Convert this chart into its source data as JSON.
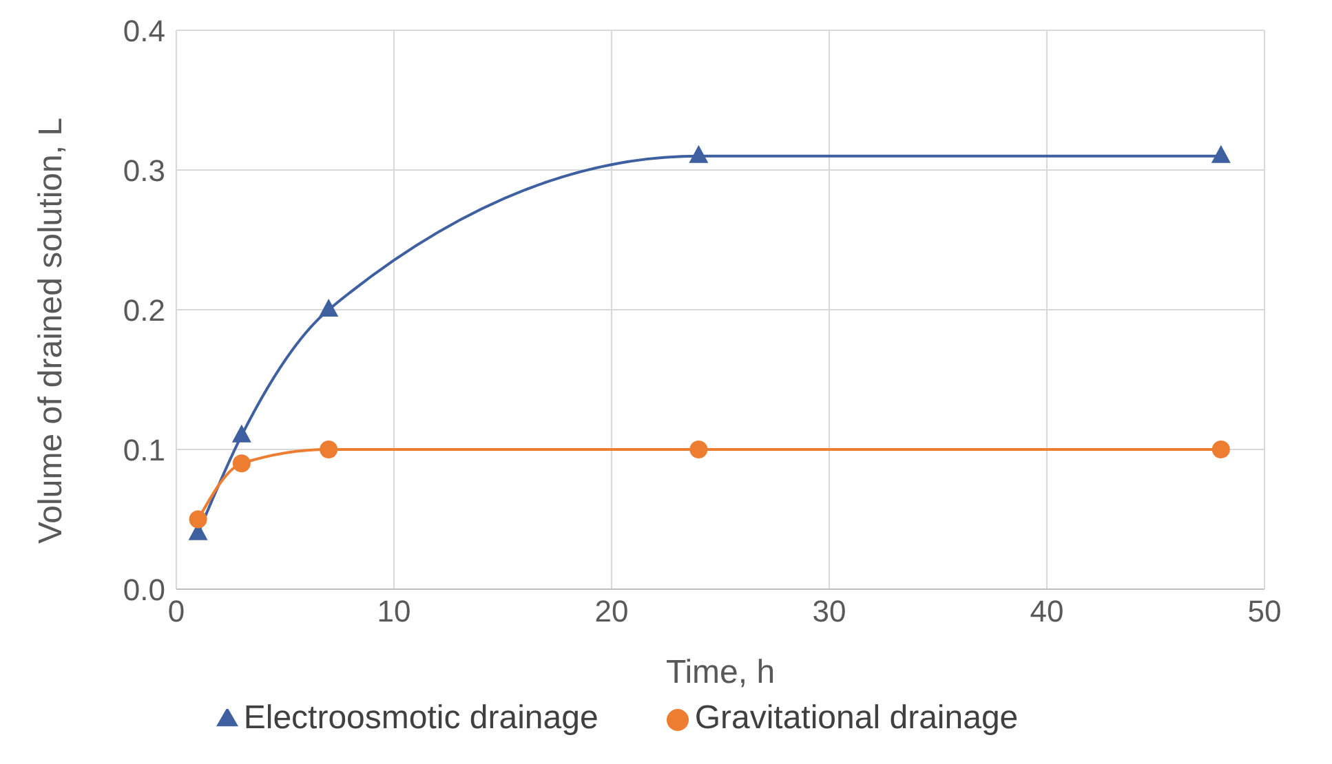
{
  "chart_data": {
    "type": "line",
    "xlabel": "Time, h",
    "ylabel": "Volume of drained solution, L",
    "xlim": [
      0,
      50
    ],
    "xticks": [
      0,
      10,
      20,
      30,
      40,
      50
    ],
    "ylim": [
      0,
      0.4
    ],
    "yticks": [
      {
        "value": 0,
        "label": "0.0"
      },
      {
        "value": 0.1,
        "label": "0.1"
      },
      {
        "value": 0.2,
        "label": "0.2"
      },
      {
        "value": 0.3,
        "label": "0.3"
      },
      {
        "value": 0.4,
        "label": "0.4"
      }
    ],
    "grid": true,
    "legend": "bottom",
    "series": [
      {
        "name": "Electroosmotic drainage",
        "color": "#3f60a0",
        "marker": "triangle",
        "x": [
          1,
          3,
          7,
          24,
          48
        ],
        "values": [
          0.04,
          0.11,
          0.2,
          0.31,
          0.31
        ]
      },
      {
        "name": "Gravitational drainage",
        "color": "#ed7d31",
        "marker": "circle",
        "x": [
          1,
          3,
          7,
          24,
          48
        ],
        "values": [
          0.05,
          0.09,
          0.1,
          0.1,
          0.1
        ]
      }
    ]
  }
}
